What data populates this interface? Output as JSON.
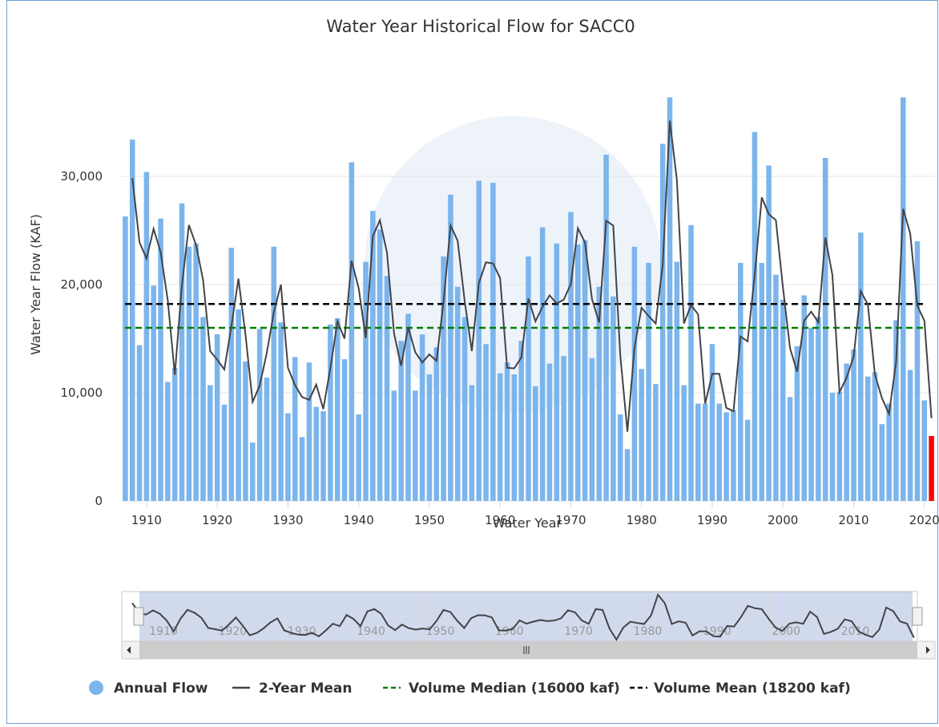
{
  "chart_data": {
    "type": "bar",
    "title": "Water Year Historical Flow for SACC0",
    "y_label": "Water Year Flow (KAF)",
    "x_label": "Water Year",
    "xlim": [
      1906.5,
      2021.5
    ],
    "xticks": [
      1910,
      1920,
      1930,
      1940,
      1950,
      1960,
      1970,
      1980,
      1990,
      2000,
      2010,
      2020
    ],
    "ylim": [
      0,
      40000
    ],
    "yticks": [
      0,
      {
        "value": 10000,
        "label": "10,000"
      },
      {
        "value": 20000,
        "label": "20,000"
      },
      {
        "value": 30000,
        "label": "30,000"
      }
    ],
    "grid": true,
    "x": [
      1907,
      1908,
      1909,
      1910,
      1911,
      1912,
      1913,
      1914,
      1915,
      1916,
      1917,
      1918,
      1919,
      1920,
      1921,
      1922,
      1923,
      1924,
      1925,
      1926,
      1927,
      1928,
      1929,
      1930,
      1931,
      1932,
      1933,
      1934,
      1935,
      1936,
      1937,
      1938,
      1939,
      1940,
      1941,
      1942,
      1943,
      1944,
      1945,
      1946,
      1947,
      1948,
      1949,
      1950,
      1951,
      1952,
      1953,
      1954,
      1955,
      1956,
      1957,
      1958,
      1959,
      1960,
      1961,
      1962,
      1963,
      1964,
      1965,
      1966,
      1967,
      1968,
      1969,
      1970,
      1971,
      1972,
      1973,
      1974,
      1975,
      1976,
      1977,
      1978,
      1979,
      1980,
      1981,
      1982,
      1983,
      1984,
      1985,
      1986,
      1987,
      1988,
      1989,
      1990,
      1991,
      1992,
      1993,
      1994,
      1995,
      1996,
      1997,
      1998,
      1999,
      2000,
      2001,
      2002,
      2003,
      2004,
      2005,
      2006,
      2007,
      2008,
      2009,
      2010,
      2011,
      2012,
      2013,
      2014,
      2015,
      2016,
      2017,
      2018,
      2019,
      2020,
      2021
    ],
    "series": [
      {
        "name": "Annual Flow",
        "type": "bar",
        "color": "#7cb5ec",
        "last_color": "#ff0000",
        "values": [
          26300,
          33400,
          14400,
          30400,
          19900,
          26100,
          11000,
          12300,
          27500,
          23500,
          23800,
          17000,
          10700,
          15400,
          8900,
          23400,
          17700,
          12900,
          5400,
          15900,
          11400,
          23500,
          16500,
          8100,
          13300,
          5900,
          12800,
          8700,
          8300,
          16300,
          16900,
          13100,
          31300,
          8000,
          22100,
          26800,
          25100,
          20800,
          10200,
          14800,
          17300,
          10200,
          15400,
          11700,
          14200,
          22600,
          28300,
          19800,
          17000,
          10700,
          29600,
          14500,
          29400,
          11800,
          12800,
          11700,
          14800,
          22600,
          10600,
          25300,
          12700,
          23800,
          13400,
          26700,
          23700,
          24100,
          13200,
          19800,
          32000,
          18900,
          8000,
          4800,
          23500,
          12200,
          22000,
          10800,
          33000,
          37300,
          22100,
          10700,
          25500,
          9000,
          9000,
          14500,
          9000,
          8200,
          8400,
          22000,
          7500,
          34100,
          22000,
          31000,
          20900,
          18600,
          9600,
          14300,
          19000,
          16000,
          17000,
          31700,
          10000,
          10100,
          12700,
          14000,
          24800,
          11500,
          11900,
          7100,
          9000,
          16700,
          37300,
          12100,
          24000,
          9300,
          6000
        ]
      },
      {
        "name": "2-Year Mean",
        "type": "line",
        "color": "#434348",
        "values": [
          null,
          29850,
          23900,
          22400,
          25150,
          23000,
          18550,
          11650,
          19900,
          25500,
          23650,
          20400,
          13850,
          13050,
          12150,
          16150,
          20550,
          15300,
          9150,
          10650,
          13650,
          17450,
          20000,
          12300,
          10700,
          9600,
          9350,
          10750,
          8500,
          12300,
          16600,
          15000,
          22200,
          19650,
          15050,
          24450,
          25950,
          22950,
          15500,
          12500,
          16050,
          13750,
          12800,
          13550,
          12950,
          18400,
          25450,
          24050,
          18400,
          13850,
          20150,
          22050,
          21950,
          20600,
          12300,
          12250,
          13250,
          18700,
          16600,
          17950,
          19000,
          18250,
          18600,
          20050,
          25200,
          23900,
          18650,
          16500,
          25900,
          25450,
          13450,
          6400,
          14150,
          17850,
          17100,
          16400,
          21900,
          35150,
          29700,
          16400,
          18100,
          17250,
          9000,
          11750,
          11750,
          8600,
          8300,
          15200,
          14750,
          20800,
          28050,
          26500,
          25950,
          19750,
          14100,
          11950,
          16650,
          17500,
          16500,
          24350,
          20850,
          10050,
          11400,
          13350,
          19400,
          18150,
          11700,
          9500,
          8050,
          12850,
          27000,
          24700,
          18050,
          16650,
          7650
        ]
      }
    ],
    "reference_lines": [
      {
        "name": "Volume Median (16000 kaf)",
        "value": 16000,
        "color": "#008000"
      },
      {
        "name": "Volume Mean (18200 kaf)",
        "value": 18200,
        "color": "#000000"
      }
    ],
    "navigator": {
      "xticks": [
        1910,
        1920,
        1930,
        1940,
        1950,
        1960,
        1970,
        1980,
        1990,
        2000,
        2010
      ]
    }
  }
}
